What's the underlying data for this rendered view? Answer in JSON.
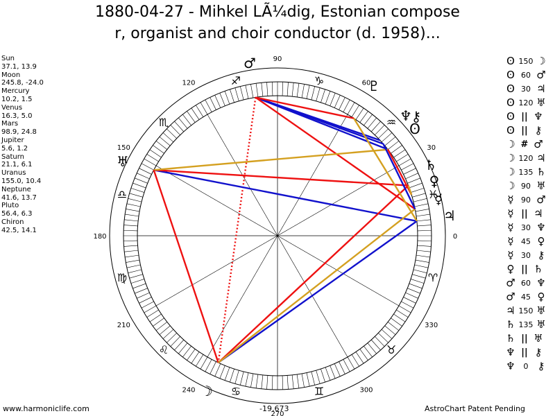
{
  "title_line1": "1880-04-27 - Mihkel LÃ¼dig, Estonian compose",
  "title_line2": "r, organist and choir conductor (d. 1958)...",
  "positions": [
    {
      "name": "Sun",
      "coords": "37.1, 13.9"
    },
    {
      "name": "Moon",
      "coords": "245.8, -24.0"
    },
    {
      "name": "Mercury",
      "coords": "10.2, 1.5"
    },
    {
      "name": "Venus",
      "coords": "16.3, 5.0"
    },
    {
      "name": "Mars",
      "coords": "98.9, 24.8"
    },
    {
      "name": "Jupiter",
      "coords": "5.6, 1.2"
    },
    {
      "name": "Saturn",
      "coords": "21.1, 6.1"
    },
    {
      "name": "Uranus",
      "coords": "155.0, 10.4"
    },
    {
      "name": "Neptune",
      "coords": "41.6, 13.7"
    },
    {
      "name": "Pluto",
      "coords": "56.4, 6.3"
    },
    {
      "name": "Chiron",
      "coords": "42.5, 14.1"
    }
  ],
  "degree_labels": [
    "0",
    "30",
    "60",
    "90",
    "120",
    "150",
    "180",
    "210",
    "240",
    "270",
    "300",
    "330"
  ],
  "zodiac_signs": [
    "♓",
    "♒",
    "♑",
    "♐",
    "♏",
    "♎",
    "♍",
    "♌",
    "♋",
    "♊",
    "♉",
    "♈"
  ],
  "planet_glyphs": {
    "Sun": "ʘ",
    "Moon": "☽",
    "Mercury": "☿",
    "Venus": "♀",
    "Mars": "♂",
    "Jupiter": "♃",
    "Saturn": "♄",
    "Uranus": "♅",
    "Neptune": "♆",
    "Pluto": "♇",
    "Chiron": "⚷"
  },
  "aspects": [
    {
      "p1": "ʘ",
      "aspect": "",
      "value": "150",
      "p2": "☽"
    },
    {
      "p1": "ʘ",
      "aspect": "",
      "value": "60",
      "p2": "♂"
    },
    {
      "p1": "ʘ",
      "aspect": "",
      "value": "30",
      "p2": "♃"
    },
    {
      "p1": "ʘ",
      "aspect": "",
      "value": "120",
      "p2": "♅"
    },
    {
      "p1": "ʘ",
      "aspect": "||",
      "value": "",
      "p2": "♆"
    },
    {
      "p1": "ʘ",
      "aspect": "||",
      "value": "",
      "p2": "⚷"
    },
    {
      "p1": "☽",
      "aspect": "#",
      "value": "",
      "p2": "♂"
    },
    {
      "p1": "☽",
      "aspect": "",
      "value": "120",
      "p2": "♃"
    },
    {
      "p1": "☽",
      "aspect": "",
      "value": "135",
      "p2": "♄"
    },
    {
      "p1": "☽",
      "aspect": "",
      "value": "90",
      "p2": "♅"
    },
    {
      "p1": "☿",
      "aspect": "",
      "value": "90",
      "p2": "♂"
    },
    {
      "p1": "☿",
      "aspect": "||",
      "value": "",
      "p2": "♃"
    },
    {
      "p1": "☿",
      "aspect": "",
      "value": "30",
      "p2": "♆"
    },
    {
      "p1": "☿",
      "aspect": "",
      "value": "45",
      "p2": "♀"
    },
    {
      "p1": "☿",
      "aspect": "",
      "value": "30",
      "p2": "⚷"
    },
    {
      "p1": "♀",
      "aspect": "||",
      "value": "",
      "p2": "♄"
    },
    {
      "p1": "♂",
      "aspect": "",
      "value": "60",
      "p2": "♆"
    },
    {
      "p1": "♂",
      "aspect": "",
      "value": "45",
      "p2": "♀"
    },
    {
      "p1": "♃",
      "aspect": "",
      "value": "150",
      "p2": "♅"
    },
    {
      "p1": "♄",
      "aspect": "",
      "value": "135",
      "p2": "♅"
    },
    {
      "p1": "♄",
      "aspect": "||",
      "value": "",
      "p2": "♅"
    },
    {
      "p1": "♆",
      "aspect": "||",
      "value": "",
      "p2": "⚷"
    },
    {
      "p1": "♆",
      "aspect": "",
      "value": "0",
      "p2": "⚷"
    }
  ],
  "footer_left": "www.harmoniclife.com",
  "footer_center": "-19,673",
  "footer_right": "AstroChart Patent Pending",
  "colors": {
    "red": "#ee1111",
    "blue": "#1111cc",
    "gold": "#d4a020"
  }
}
